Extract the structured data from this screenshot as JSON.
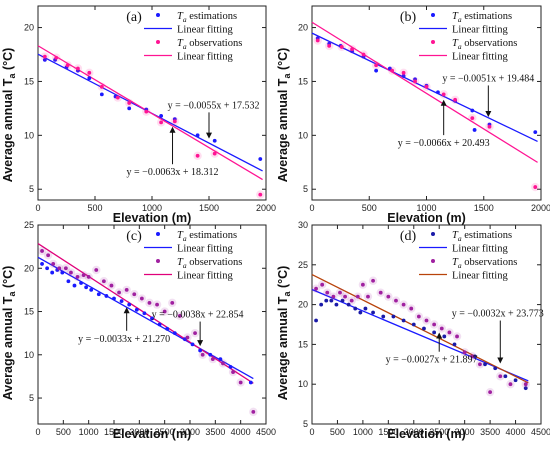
{
  "y_axis_label": "Average annual T",
  "y_axis_label_sub": "a",
  "y_axis_label_unit": " (°C)",
  "chart_data": [
    {
      "type": "scatter",
      "panel_label": "(a)",
      "xlabel": "Elevation (m)",
      "xlim": [
        0,
        2000
      ],
      "ylim": [
        4,
        22
      ],
      "xticks": [
        0,
        500,
        1000,
        1500,
        2000
      ],
      "yticks": [
        5,
        10,
        15,
        20
      ],
      "legend_position": "top-right",
      "legend": [
        {
          "kind": "marker",
          "text": "T",
          "sub": "a",
          "tail": " estimations",
          "color": "#1a1aff"
        },
        {
          "kind": "line",
          "text": "Linear fitting",
          "color": "#1a1aff"
        },
        {
          "kind": "marker",
          "text": "T",
          "sub": "a",
          "tail": " observations",
          "color": "#ff1493"
        },
        {
          "kind": "line",
          "text": "Linear fitting",
          "color": "#ff1493"
        }
      ],
      "series": [
        {
          "name": "Ta estimations",
          "color": "#1a1aff",
          "x": [
            60,
            150,
            250,
            350,
            450,
            560,
            680,
            800,
            950,
            1080,
            1200,
            1400,
            1550,
            1950
          ],
          "y": [
            17.0,
            17.0,
            16.3,
            16.0,
            15.3,
            13.8,
            13.6,
            12.5,
            12.4,
            11.8,
            11.5,
            10.0,
            9.5,
            7.8
          ]
        },
        {
          "name": "Ta observations",
          "color": "#ff1493",
          "x": [
            60,
            160,
            260,
            350,
            450,
            560,
            700,
            800,
            950,
            1080,
            1200,
            1400,
            1550,
            1950
          ],
          "y": [
            17.3,
            17.2,
            16.5,
            16.2,
            15.8,
            14.5,
            13.5,
            13.0,
            12.2,
            11.2,
            11.3,
            8.1,
            8.3,
            4.5
          ]
        }
      ],
      "fits": [
        {
          "color": "#1a1aff",
          "slope": -0.0055,
          "intercept": 17.532,
          "x0": 0,
          "x1": 1970
        },
        {
          "color": "#ff1493",
          "slope": -0.0063,
          "intercept": 18.312,
          "x0": 0,
          "x1": 1970
        }
      ],
      "annotations": [
        {
          "text": "y = −0.0055x + 17.532",
          "at": [
            1540,
            12.5
          ],
          "arrow_tip": [
            1500,
            9.7
          ]
        },
        {
          "text": "y = −0.0063x + 18.312",
          "at": [
            1180,
            6.3
          ],
          "arrow_tip": [
            1180,
            10.8
          ]
        }
      ]
    },
    {
      "type": "scatter",
      "panel_label": "(b)",
      "xlabel": "Elevation (m)",
      "xlim": [
        0,
        2000
      ],
      "ylim": [
        4,
        22
      ],
      "xticks": [
        0,
        500,
        1000,
        1500,
        2000
      ],
      "yticks": [
        5,
        10,
        15,
        20
      ],
      "legend_position": "top-right",
      "legend": [
        {
          "kind": "marker",
          "text": "T",
          "sub": "a",
          "tail": " estimations",
          "color": "#1a1aff"
        },
        {
          "kind": "line",
          "text": "Linear fitting",
          "color": "#1a1aff"
        },
        {
          "kind": "marker",
          "text": "T",
          "sub": "a",
          "tail": " observations",
          "color": "#ff1493"
        },
        {
          "kind": "line",
          "text": "Linear fitting",
          "color": "#ff1493"
        }
      ],
      "series": [
        {
          "name": "Ta estimations",
          "color": "#1a1aff",
          "x": [
            50,
            150,
            250,
            350,
            450,
            560,
            680,
            800,
            900,
            1000,
            1100,
            1250,
            1400,
            1420,
            1550,
            1950
          ],
          "y": [
            19.0,
            18.5,
            18.3,
            17.8,
            17.3,
            16.0,
            16.2,
            15.5,
            15.2,
            14.6,
            14.0,
            13.2,
            12.3,
            10.5,
            11.0,
            10.3
          ]
        },
        {
          "name": "Ta observations",
          "color": "#ff1493",
          "x": [
            50,
            150,
            260,
            350,
            450,
            560,
            700,
            800,
            900,
            1000,
            1150,
            1250,
            1400,
            1550,
            1950
          ],
          "y": [
            18.8,
            18.3,
            18.2,
            18.0,
            17.5,
            16.5,
            16.0,
            15.8,
            15.0,
            14.5,
            13.8,
            13.3,
            11.6,
            10.8,
            5.2
          ]
        }
      ],
      "fits": [
        {
          "color": "#1a1aff",
          "slope": -0.0051,
          "intercept": 19.484,
          "x0": 0,
          "x1": 1970
        },
        {
          "color": "#ff1493",
          "slope": -0.0066,
          "intercept": 20.493,
          "x0": 0,
          "x1": 1970
        }
      ],
      "annotations": [
        {
          "text": "y = −0.0051x + 19.484",
          "at": [
            1540,
            15.0
          ],
          "arrow_tip": [
            1540,
            11.7
          ]
        },
        {
          "text": "y = −0.0066x + 20.493",
          "at": [
            1150,
            9.0
          ],
          "arrow_tip": [
            1150,
            13.3
          ]
        }
      ]
    },
    {
      "type": "scatter",
      "panel_label": "(c)",
      "xlabel": "Elevation (m)",
      "xlim": [
        0,
        4500
      ],
      "ylim": [
        2,
        25
      ],
      "xticks": [
        0,
        500,
        1000,
        1500,
        2000,
        2500,
        3000,
        3500,
        4000,
        4500
      ],
      "yticks": [
        5,
        10,
        15,
        20,
        25
      ],
      "legend_position": "top-right",
      "legend": [
        {
          "kind": "marker",
          "text": "T",
          "sub": "a",
          "tail": " estimations",
          "color": "#1a1aff"
        },
        {
          "kind": "line",
          "text": "Linear fitting",
          "color": "#1a1aff"
        },
        {
          "kind": "marker",
          "text": "T",
          "sub": "a",
          "tail": " observations",
          "color": "#a020a0"
        },
        {
          "kind": "line",
          "text": "Linear fitting",
          "color": "#e0007a"
        }
      ],
      "series": [
        {
          "name": "Ta estimations",
          "color": "#1a1aff",
          "x": [
            80,
            180,
            280,
            380,
            480,
            600,
            720,
            850,
            950,
            1050,
            1200,
            1350,
            1500,
            1650,
            1800,
            1950,
            2100,
            2250,
            2400,
            2550,
            2700,
            2900,
            3050,
            3200,
            3400,
            3600,
            3800,
            4200
          ],
          "y": [
            20.5,
            20.0,
            19.5,
            19.8,
            19.5,
            18.5,
            18.0,
            18.3,
            17.8,
            17.5,
            17.0,
            16.8,
            16.5,
            16.2,
            15.8,
            15.2,
            14.8,
            14.2,
            13.5,
            13.0,
            12.5,
            11.8,
            11.2,
            10.5,
            10.0,
            9.5,
            8.6,
            6.8
          ]
        },
        {
          "name": "Ta observations",
          "color": "#a020a0",
          "x": [
            80,
            200,
            300,
            420,
            550,
            650,
            780,
            900,
            1000,
            1150,
            1300,
            1450,
            1600,
            1750,
            1900,
            2050,
            2200,
            2350,
            2500,
            2650,
            2800,
            2950,
            3100,
            3250,
            3450,
            3650,
            3850,
            4000,
            4250
          ],
          "y": [
            22.0,
            21.5,
            20.5,
            20.0,
            20.0,
            19.5,
            19.0,
            19.2,
            19.0,
            19.8,
            18.5,
            18.0,
            17.2,
            17.5,
            17.0,
            16.5,
            16.0,
            15.8,
            15.0,
            16.0,
            14.5,
            12.0,
            12.5,
            10.0,
            9.5,
            9.0,
            8.0,
            6.8,
            3.4
          ]
        }
      ],
      "fits": [
        {
          "color": "#1a1aff",
          "slope": -0.0033,
          "intercept": 21.27,
          "x0": 0,
          "x1": 4250
        },
        {
          "color": "#e0007a",
          "slope": -0.0038,
          "intercept": 22.854,
          "x0": 0,
          "x1": 4250
        }
      ],
      "annotations": [
        {
          "text": "y = −0.0038x + 22.854",
          "at": [
            3150,
            14.3
          ],
          "arrow_tip": [
            3200,
            11.0
          ]
        },
        {
          "text": "y = −0.0033x + 21.270",
          "at": [
            1700,
            11.5
          ],
          "arrow_tip": [
            1750,
            15.5
          ]
        }
      ]
    },
    {
      "type": "scatter",
      "panel_label": "(d)",
      "xlabel": "Elevation (m)",
      "xlim": [
        0,
        4500
      ],
      "ylim": [
        5,
        30
      ],
      "xticks": [
        0,
        500,
        1000,
        1500,
        2000,
        2500,
        3000,
        3500,
        4000,
        4500
      ],
      "yticks": [
        5,
        10,
        15,
        20,
        25,
        30
      ],
      "legend_position": "top-right",
      "legend": [
        {
          "kind": "marker",
          "text": "T",
          "sub": "a",
          "tail": " estimations",
          "color": "#1a1aa8"
        },
        {
          "kind": "line",
          "text": "Linear fitting",
          "color": "#1a1aff"
        },
        {
          "kind": "marker",
          "text": "T",
          "sub": "a",
          "tail": " observations",
          "color": "#a020a0"
        },
        {
          "kind": "line",
          "text": "Linear fitting",
          "color": "#b8430a"
        }
      ],
      "series": [
        {
          "name": "Ta estimations",
          "color": "#1a1aa8",
          "x": [
            80,
            180,
            280,
            380,
            480,
            600,
            720,
            850,
            950,
            1050,
            1200,
            1400,
            1600,
            1800,
            2000,
            2200,
            2400,
            2600,
            2800,
            3000,
            3200,
            3400,
            3600,
            3800,
            4000,
            4200
          ],
          "y": [
            18.0,
            20.0,
            20.5,
            20.5,
            20.0,
            20.5,
            20.0,
            19.5,
            19.0,
            19.5,
            19.0,
            18.5,
            18.5,
            18.0,
            17.5,
            17.0,
            16.5,
            16.0,
            15.0,
            14.0,
            13.5,
            12.5,
            12.0,
            11.0,
            10.5,
            9.5
          ]
        },
        {
          "name": "Ta observations",
          "color": "#a020a0",
          "x": [
            80,
            200,
            300,
            420,
            550,
            650,
            780,
            900,
            1000,
            1100,
            1200,
            1350,
            1500,
            1650,
            1800,
            1950,
            2100,
            2250,
            2400,
            2550,
            2700,
            2850,
            3000,
            3150,
            3300,
            3500,
            3700,
            3900,
            4200
          ],
          "y": [
            22.0,
            22.5,
            21.5,
            21.0,
            21.5,
            21.0,
            20.5,
            21.0,
            22.5,
            21.0,
            23.0,
            21.5,
            21.0,
            20.5,
            20.0,
            19.5,
            18.5,
            18.0,
            17.5,
            17.0,
            16.5,
            16.0,
            14.0,
            13.5,
            12.5,
            9.0,
            11.0,
            10.0,
            10.0
          ]
        }
      ],
      "fits": [
        {
          "color": "#1a1aff",
          "slope": -0.0027,
          "intercept": 21.897,
          "x0": 0,
          "x1": 4250
        },
        {
          "color": "#b8430a",
          "slope": -0.0032,
          "intercept": 23.773,
          "x0": 0,
          "x1": 4250
        }
      ],
      "annotations": [
        {
          "text": "y = −0.0032x + 23.773",
          "at": [
            3650,
            18.5
          ],
          "arrow_tip": [
            3700,
            12.6
          ]
        },
        {
          "text": "y = −0.0027x + 21.897",
          "at": [
            2350,
            12.7
          ],
          "arrow_tip": [
            2500,
            16.5
          ]
        }
      ]
    }
  ]
}
